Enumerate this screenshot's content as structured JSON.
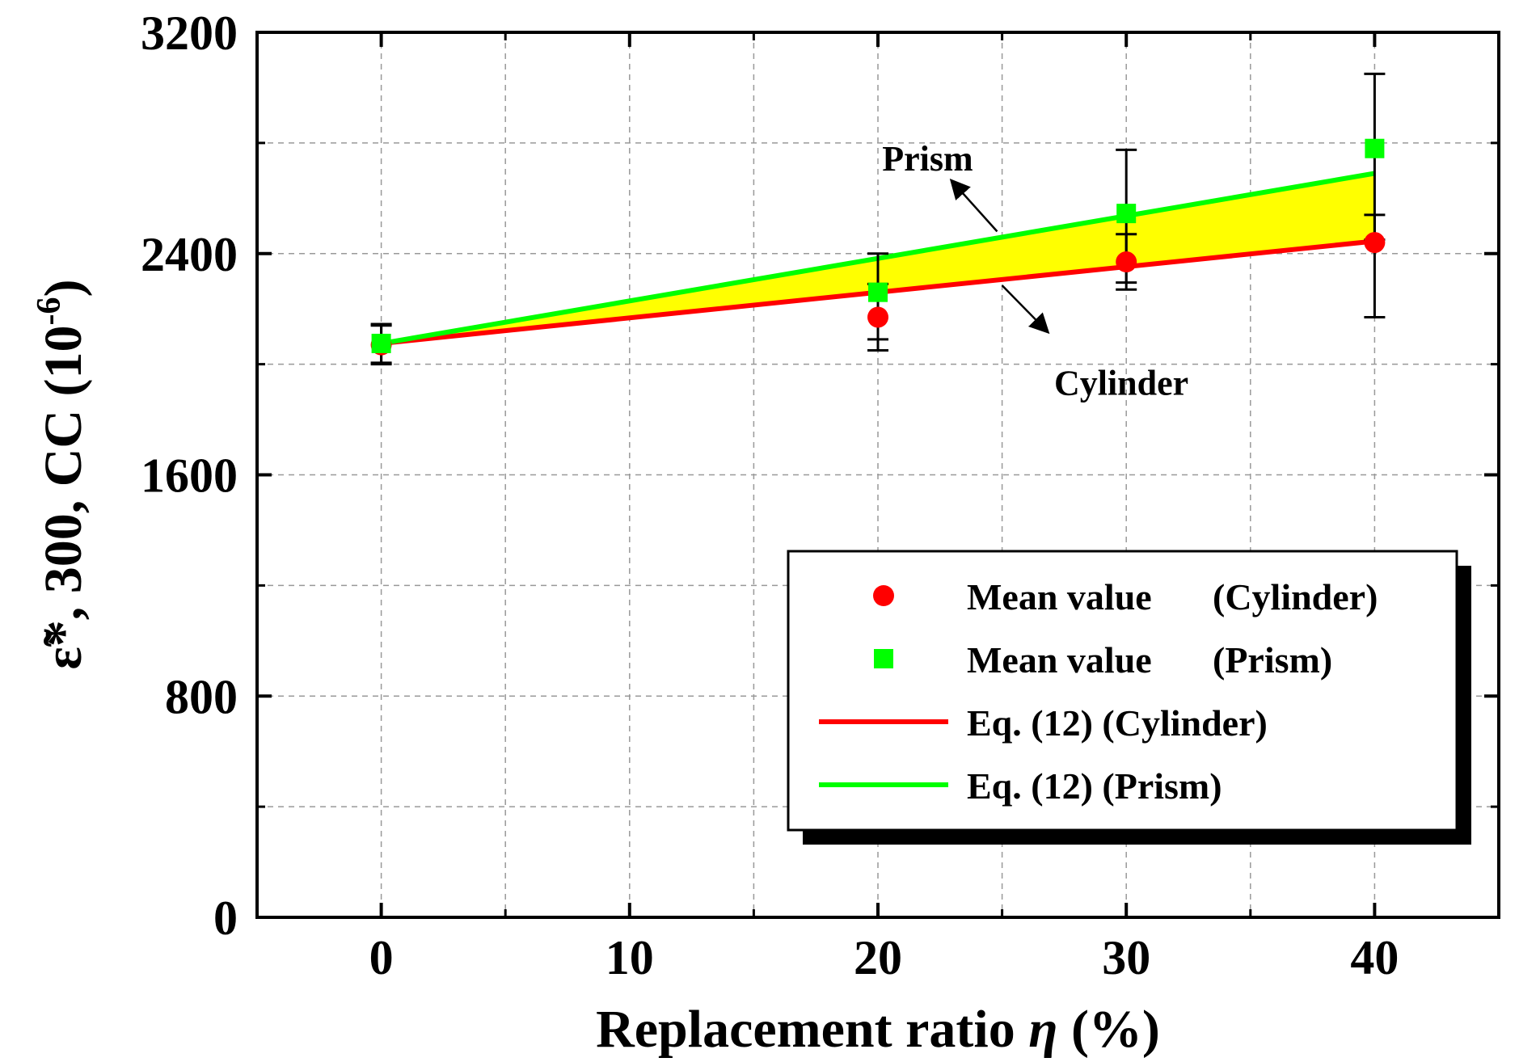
{
  "chart_data": {
    "type": "scatter",
    "title": "",
    "xlabel": "Replacement ratio",
    "xlabel_symbol": "η",
    "xlabel_unit": "(%)",
    "ylabel": "ε̃*, 300, CC (10",
    "ylabel_exp": "-6",
    "ylabel_close": ")",
    "xlim": [
      -5,
      45
    ],
    "ylim": [
      0,
      3200
    ],
    "x_ticks": [
      0,
      10,
      20,
      30,
      40
    ],
    "x_tick_labels": [
      "0",
      "10",
      "20",
      "30",
      "40"
    ],
    "x_minor_ticks": [
      5,
      15,
      25,
      35
    ],
    "y_ticks": [
      0,
      800,
      1600,
      2400,
      3200
    ],
    "y_tick_labels": [
      "0",
      "800",
      "1600",
      "2400",
      "3200"
    ],
    "y_minor_ticks": [
      400,
      1200,
      2000,
      2800
    ],
    "grid": true,
    "legend_position": "lower-right",
    "fill_between_colors": "#ffff00",
    "series": [
      {
        "name": "Mean value (Cylinder)",
        "label_left": "Mean value",
        "label_right": "(Cylinder)",
        "kind": "scatter",
        "marker": "circle",
        "color": "#ff0000",
        "x": [
          0,
          20,
          30,
          40
        ],
        "y": [
          2070,
          2170,
          2370,
          2440
        ],
        "err_low": [
          70,
          120,
          100,
          270
        ],
        "err_high": [
          70,
          120,
          100,
          100
        ]
      },
      {
        "name": "Mean value (Prism)",
        "label_left": "Mean value",
        "label_right": "(Prism)",
        "kind": "scatter",
        "marker": "square",
        "color": "#00ff00",
        "x": [
          0,
          20,
          30,
          40
        ],
        "y": [
          2075,
          2260,
          2545,
          2780
        ],
        "err_low": [
          70,
          170,
          250,
          330
        ],
        "err_high": [
          70,
          140,
          230,
          270
        ]
      },
      {
        "name": "Eq. (12) (Cylinder)",
        "kind": "line",
        "color": "#ff0000",
        "x": [
          0,
          40
        ],
        "y": [
          2075,
          2445
        ]
      },
      {
        "name": "Eq. (12) (Prism)",
        "kind": "line",
        "color": "#00ff00",
        "x": [
          0,
          40
        ],
        "y": [
          2075,
          2690
        ]
      }
    ],
    "annotations": [
      {
        "text": "Prism",
        "x": 22,
        "y": 2700,
        "arrow_from": [
          24.8,
          2480
        ],
        "arrow_to": [
          23,
          2660
        ]
      },
      {
        "text": "Cylinder",
        "x": 29.8,
        "y": 1890,
        "arrow_from": [
          25,
          2285
        ],
        "arrow_to": [
          26.8,
          2120
        ]
      }
    ]
  }
}
